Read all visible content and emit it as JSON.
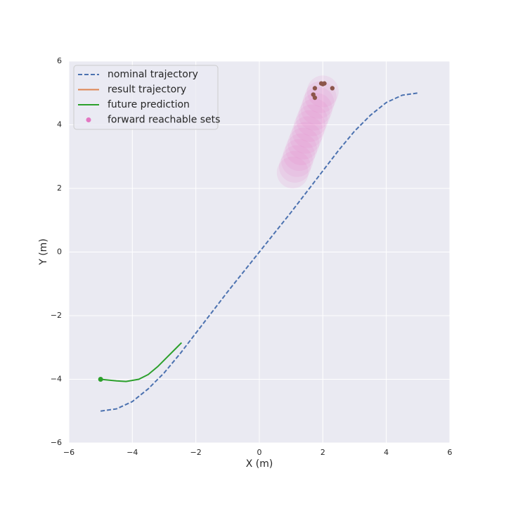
{
  "chart_data": {
    "type": "line",
    "x_label": "X (m)",
    "y_label": "Y (m)",
    "xlim": [
      -6,
      6
    ],
    "ylim": [
      -6,
      6
    ],
    "xticks": [
      {
        "value": -6,
        "label": "−6"
      },
      {
        "value": -4,
        "label": "−4"
      },
      {
        "value": -2,
        "label": "−2"
      },
      0,
      2,
      4,
      6
    ],
    "yticks": [
      {
        "value": -6,
        "label": "−6"
      },
      {
        "value": -4,
        "label": "−4"
      },
      {
        "value": -2,
        "label": "−2"
      },
      0,
      2,
      4,
      6
    ],
    "grid": true,
    "legend": "upper-left",
    "series": [
      {
        "name": "nominal trajectory",
        "color": "#4c72b0",
        "kind": "line",
        "dashed": true,
        "x": [
          -5,
          -4.5,
          -4,
          -3.5,
          -3,
          -2.5,
          -2,
          -1,
          0,
          1,
          2,
          2.5,
          3,
          3.5,
          4,
          4.5,
          5
        ],
        "y": [
          -5,
          -4.93,
          -4.7,
          -4.3,
          -3.8,
          -3.2,
          -2.55,
          -1.25,
          0,
          1.25,
          2.55,
          3.2,
          3.8,
          4.3,
          4.7,
          4.93,
          5
        ]
      },
      {
        "name": "result trajectory",
        "color": "#dd8452",
        "kind": "line",
        "dashed": false,
        "x": [],
        "y": []
      },
      {
        "name": "future prediction",
        "color": "#2ca02c",
        "kind": "line",
        "dashed": false,
        "start_marker": true,
        "x": [
          -5,
          -4.5,
          -4.2,
          -3.8,
          -3.5,
          -3.2,
          -2.9,
          -2.6,
          -2.45
        ],
        "y": [
          -4,
          -4.05,
          -4.07,
          -4.0,
          -3.85,
          -3.6,
          -3.3,
          -3.0,
          -2.85
        ]
      },
      {
        "name": "forward reachable sets",
        "color": "#e377c2",
        "kind": "scatter",
        "radius": 0.5,
        "alpha": 0.12,
        "x": [
          1.05,
          1.12,
          1.19,
          1.25,
          1.32,
          1.39,
          1.46,
          1.53,
          1.59,
          1.66,
          1.73,
          1.8,
          1.86,
          1.93,
          2.0
        ],
        "y": [
          2.5,
          2.68,
          2.86,
          3.05,
          3.23,
          3.41,
          3.59,
          3.77,
          3.96,
          4.14,
          4.32,
          4.5,
          4.69,
          4.87,
          5.05
        ]
      },
      {
        "color": "#8c564b",
        "kind": "scatter",
        "radius": 0.07,
        "alpha": 1,
        "x": [
          1.75,
          1.95,
          2.05,
          2.3,
          1.7,
          1.75,
          2.0
        ],
        "y": [
          5.15,
          5.3,
          5.3,
          5.15,
          4.95,
          4.85,
          5.28
        ]
      }
    ]
  }
}
